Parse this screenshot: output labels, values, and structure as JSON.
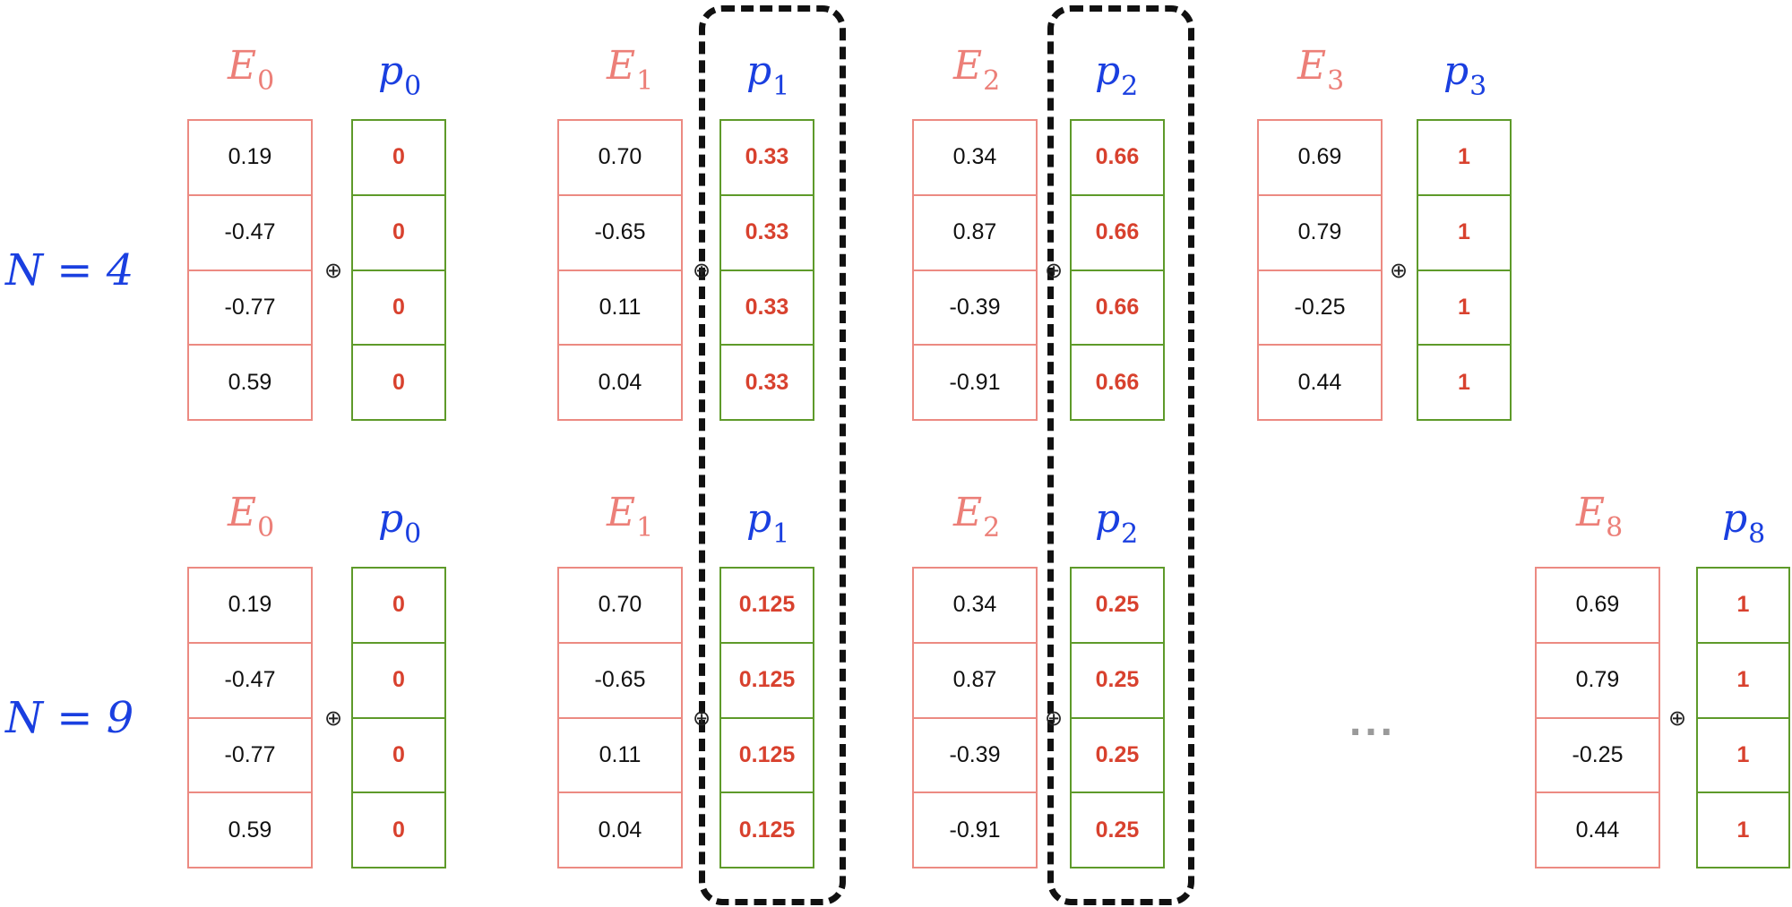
{
  "rows": [
    {
      "label": "N = 4",
      "blocks": [
        {
          "e": {
            "base": "E",
            "sub": "0"
          },
          "p": {
            "base": "p",
            "sub": "0"
          },
          "e_values": [
            "0.19",
            "-0.47",
            "-0.77",
            "0.59"
          ],
          "p_values": [
            "0",
            "0",
            "0",
            "0"
          ],
          "op": "⊕"
        },
        {
          "e": {
            "base": "E",
            "sub": "1"
          },
          "p": {
            "base": "p",
            "sub": "1"
          },
          "e_values": [
            "0.70",
            "-0.65",
            "0.11",
            "0.04"
          ],
          "p_values": [
            "0.33",
            "0.33",
            "0.33",
            "0.33"
          ],
          "op": "⊕"
        },
        {
          "e": {
            "base": "E",
            "sub": "2"
          },
          "p": {
            "base": "p",
            "sub": "2"
          },
          "e_values": [
            "0.34",
            "0.87",
            "-0.39",
            "-0.91"
          ],
          "p_values": [
            "0.66",
            "0.66",
            "0.66",
            "0.66"
          ],
          "op": "⊕"
        },
        {
          "e": {
            "base": "E",
            "sub": "3"
          },
          "p": {
            "base": "p",
            "sub": "3"
          },
          "e_values": [
            "0.69",
            "0.79",
            "-0.25",
            "0.44"
          ],
          "p_values": [
            "1",
            "1",
            "1",
            "1"
          ],
          "op": "⊕"
        }
      ]
    },
    {
      "label": "N = 9",
      "blocks": [
        {
          "e": {
            "base": "E",
            "sub": "0"
          },
          "p": {
            "base": "p",
            "sub": "0"
          },
          "e_values": [
            "0.19",
            "-0.47",
            "-0.77",
            "0.59"
          ],
          "p_values": [
            "0",
            "0",
            "0",
            "0"
          ],
          "op": "⊕"
        },
        {
          "e": {
            "base": "E",
            "sub": "1"
          },
          "p": {
            "base": "p",
            "sub": "1"
          },
          "e_values": [
            "0.70",
            "-0.65",
            "0.11",
            "0.04"
          ],
          "p_values": [
            "0.125",
            "0.125",
            "0.125",
            "0.125"
          ],
          "op": "⊕"
        },
        {
          "e": {
            "base": "E",
            "sub": "2"
          },
          "p": {
            "base": "p",
            "sub": "2"
          },
          "e_values": [
            "0.34",
            "0.87",
            "-0.39",
            "-0.91"
          ],
          "p_values": [
            "0.25",
            "0.25",
            "0.25",
            "0.25"
          ],
          "op": "⊕"
        },
        {
          "e": {
            "base": "E",
            "sub": "8"
          },
          "p": {
            "base": "p",
            "sub": "8"
          },
          "e_values": [
            "0.69",
            "0.79",
            "-0.25",
            "0.44"
          ],
          "p_values": [
            "1",
            "1",
            "1",
            "1"
          ],
          "op": "⊕"
        }
      ],
      "ellipsis": "..."
    }
  ],
  "colors": {
    "embedding": "#ec8a82",
    "position": "#5e9a2a",
    "position_value": "#d8412e",
    "label_blue": "#1a3fe0",
    "highlight": "#111111"
  }
}
